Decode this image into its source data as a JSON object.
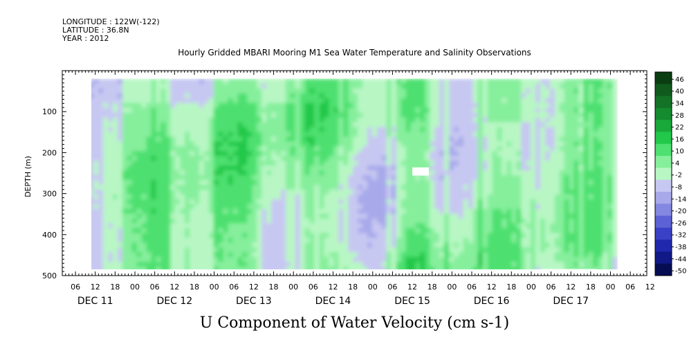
{
  "meta": {
    "longitude": "LONGITUDE : 122W(-122)",
    "latitude": "LATITUDE : 36.8N",
    "year": "YEAR : 2012"
  },
  "title": "Hourly Gridded MBARI Mooring M1 Sea Water Temperature and Salinity Observations",
  "subtitle": "U Component of Water Velocity (cm s-1)",
  "chart_data": {
    "type": "heatmap",
    "title": "Hourly Gridded MBARI Mooring M1 Sea Water Temperature and Salinity Observations",
    "xlabel": "",
    "ylabel": "DEPTH (m)",
    "x_range_hours": [
      -22,
      155
    ],
    "x_data_range_hours": [
      -14,
      146
    ],
    "y_range": [
      0,
      500
    ],
    "y_data_range": [
      20,
      490
    ],
    "y_ticks": [
      100,
      200,
      300,
      400,
      500
    ],
    "y_tick_labels": [
      "100",
      "200",
      "300",
      "400",
      "500"
    ],
    "x_hour_ticks": [
      "06",
      "12",
      "18",
      "00",
      "06",
      "12",
      "18",
      "00",
      "06",
      "12",
      "18",
      "00",
      "06",
      "12",
      "18",
      "00",
      "06",
      "12",
      "18",
      "00",
      "06",
      "12",
      "18",
      "00",
      "06",
      "12",
      "18",
      "00",
      "06",
      "12"
    ],
    "x_date_labels": [
      "DEC 11",
      "DEC 12",
      "DEC 13",
      "DEC 14",
      "DEC 15",
      "DEC 16",
      "DEC 17"
    ],
    "colorbar": {
      "levels": [
        "46",
        "40",
        "34",
        "28",
        "22",
        "16",
        "10",
        "4",
        "-2",
        "-8",
        "-14",
        "-20",
        "-26",
        "-32",
        "-38",
        "-44",
        "-50"
      ],
      "colors": [
        "#0b3d12",
        "#0f5a1c",
        "#137226",
        "#158a2e",
        "#19a93b",
        "#22c84a",
        "#4ee070",
        "#86ef9c",
        "#b8f7c4",
        "#c7c8f2",
        "#a7a9ea",
        "#8488e0",
        "#5c62d4",
        "#3a41c6",
        "#2029ad",
        "#101a86",
        "#060d52"
      ]
    },
    "grid": false
  }
}
